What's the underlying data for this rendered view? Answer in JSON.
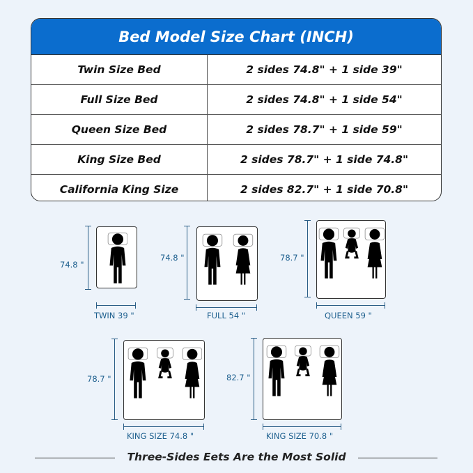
{
  "table": {
    "title": "Bed Model Size Chart (INCH)",
    "header_color": "#0b6dce",
    "rows": [
      {
        "model": "Twin Size Bed",
        "size": "2 sides 74.8\" + 1 side 39\""
      },
      {
        "model": "Full Size Bed",
        "size": "2 sides 74.8\" + 1 side 54\""
      },
      {
        "model": "Queen Size Bed",
        "size": "2 sides 78.7\" + 1 side 59\""
      },
      {
        "model": "King Size Bed",
        "size": "2 sides 78.7\" + 1 side 74.8\""
      },
      {
        "model": "California King Size",
        "size": "2 sides 82.7\" + 1 side 70.8\""
      }
    ]
  },
  "beds": [
    {
      "length_label": "74.8 \"",
      "width_label": "TWIN  39 \"",
      "occupants": [
        "man"
      ]
    },
    {
      "length_label": "74.8 \"",
      "width_label": "FULL  54 \"",
      "occupants": [
        "man",
        "woman"
      ]
    },
    {
      "length_label": "78.7 \"",
      "width_label": "QUEEN  59 \"",
      "occupants": [
        "man",
        "baby",
        "woman"
      ]
    },
    {
      "length_label": "78.7 \"",
      "width_label": "KING SIZE  74.8 \"",
      "occupants": [
        "man",
        "baby",
        "woman"
      ]
    },
    {
      "length_label": "82.7 \"",
      "width_label": "KING SIZE  70.8 \"",
      "occupants": [
        "man",
        "baby",
        "woman"
      ]
    }
  ],
  "footer": "Three-Sides Eets Are the Most Solid"
}
